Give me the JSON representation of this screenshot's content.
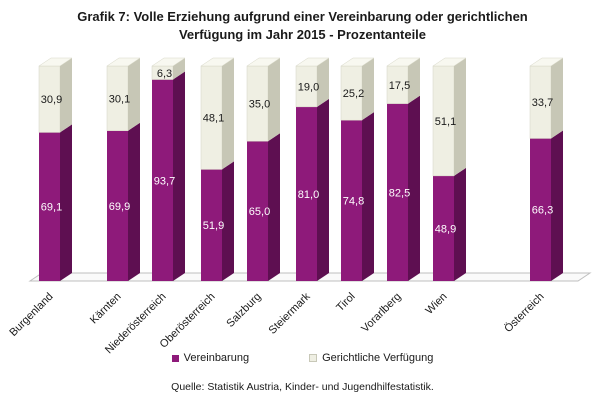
{
  "title": {
    "line1": "Grafik 7: Volle Erziehung aufgrund einer Vereinbarung oder gerichtlichen",
    "line2": "Verfügung im Jahr 2015 - Prozentanteile"
  },
  "chart_data": {
    "type": "bar",
    "stacked": true,
    "title": "Grafik 7: Volle Erziehung aufgrund einer Vereinbarung oder gerichtlichen Verfügung im Jahr 2015 - Prozentanteile",
    "categories": [
      "Burgenland",
      "Kärnten",
      "Niederösterreich",
      "Oberösterreich",
      "Salzburg",
      "Steiermark",
      "Tirol",
      "Vorarlberg",
      "Wien",
      "Österreich"
    ],
    "series": [
      {
        "name": "Vereinbarung",
        "color": "#8e1a7a",
        "values": [
          "69,1",
          "69,9",
          "93,7",
          "51,9",
          "65,0",
          "81,0",
          "74,8",
          "82,5",
          "48,9",
          "66,3"
        ]
      },
      {
        "name": "Gerichtliche Verfügung",
        "color": "#efefe3",
        "values": [
          "30,9",
          "30,1",
          "6,3",
          "48,1",
          "35,0",
          "19,0",
          "25,2",
          "17,5",
          "51,1",
          "33,7"
        ]
      }
    ],
    "ylim": [
      0,
      100
    ],
    "xlabel": "",
    "ylabel": ""
  },
  "legend": {
    "items": [
      {
        "label": "Vereinbarung",
        "color": "#8e1a7a"
      },
      {
        "label": "Gerichtliche Verfügung",
        "color": "#efefe3"
      }
    ]
  },
  "source": "Quelle: Statistik Austria, Kinder- und Jugendhilfestatistik."
}
